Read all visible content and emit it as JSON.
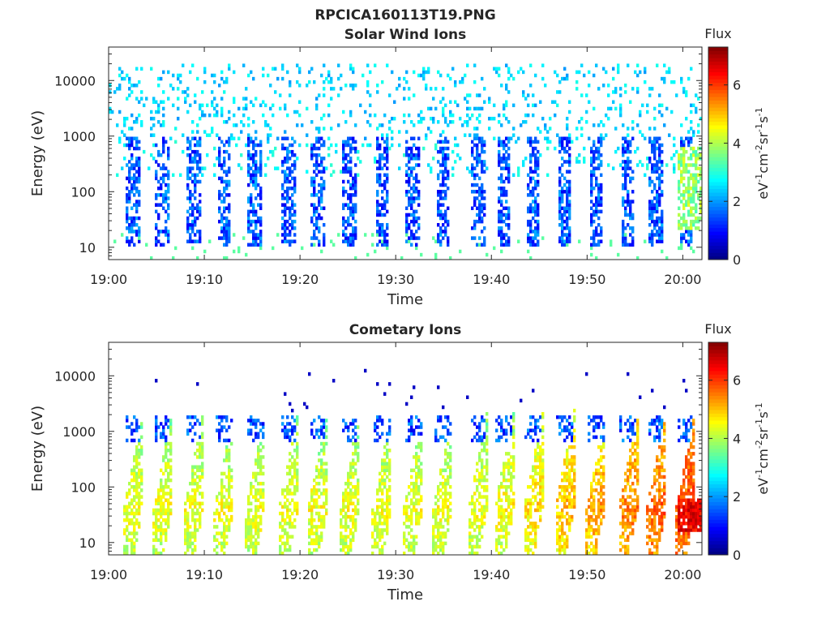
{
  "figure_title": "RPCICA160113T19.PNG",
  "colorbar_label_text": "Flux",
  "colorbar_units_parts": [
    "eV",
    "-1",
    "cm",
    "-2",
    "sr",
    "-1",
    "s",
    "-1"
  ],
  "colormap": [
    "#00007f",
    "#0000ff",
    "#007fff",
    "#00ffff",
    "#7fff7f",
    "#ffff00",
    "#ff7f00",
    "#ff0000",
    "#7f0000"
  ],
  "chart_data": [
    {
      "type": "heatmap",
      "title": "Solar Wind Ions",
      "xlabel": "Time",
      "ylabel": "Energy (eV)",
      "x_ticks": [
        "19:00",
        "19:10",
        "19:20",
        "19:30",
        "19:40",
        "19:50",
        "20:00"
      ],
      "x_range": [
        "19:00",
        "20:02"
      ],
      "y_scale": "log",
      "y_ticks": [
        "10",
        "100",
        "1000",
        "10000"
      ],
      "y_range": [
        6,
        40000
      ],
      "colorbar": {
        "label": "Flux",
        "range": [
          0,
          7.3
        ],
        "ticks": [
          "0",
          "2",
          "4",
          "6"
        ]
      },
      "profile": "solar"
    },
    {
      "type": "heatmap",
      "title": "Cometary Ions",
      "xlabel": "Time",
      "ylabel": "Energy (eV)",
      "x_ticks": [
        "19:00",
        "19:10",
        "19:20",
        "19:30",
        "19:40",
        "19:50",
        "20:00"
      ],
      "x_range": [
        "19:00",
        "20:02"
      ],
      "y_scale": "log",
      "y_ticks": [
        "10",
        "100",
        "1000",
        "10000"
      ],
      "y_range": [
        6,
        40000
      ],
      "colorbar": {
        "label": "Flux",
        "range": [
          0,
          7.3
        ],
        "ticks": [
          "0",
          "2",
          "4",
          "6"
        ]
      },
      "profile": "cometary"
    }
  ]
}
